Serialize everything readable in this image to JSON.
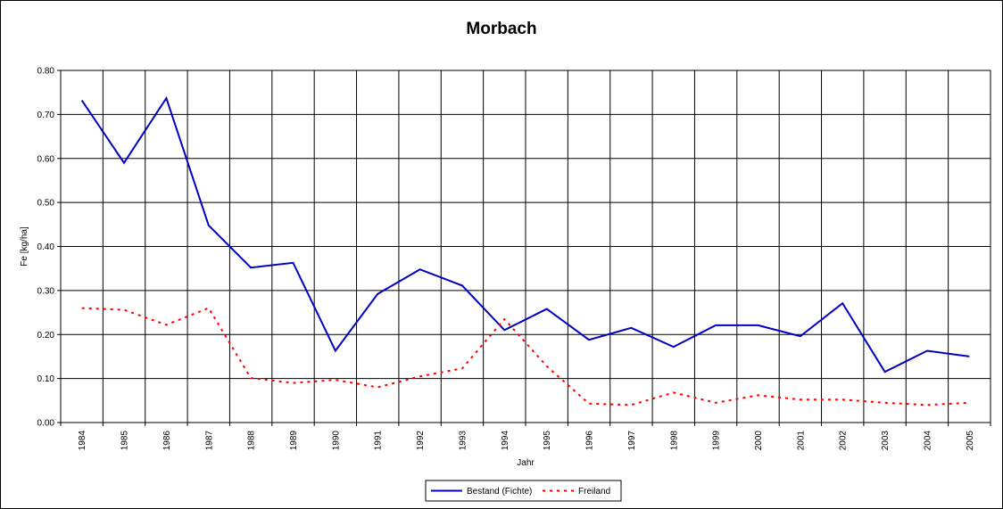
{
  "chart_data": {
    "type": "line",
    "title": "Morbach",
    "xlabel": "Jahr",
    "ylabel": "Fe [kg/ha]",
    "ylim": [
      0,
      0.8
    ],
    "yticks": [
      "0.00",
      "0.10",
      "0.20",
      "0.30",
      "0.40",
      "0.50",
      "0.60",
      "0.70",
      "0.80"
    ],
    "grid": true,
    "legend_position": "bottom-center",
    "categories": [
      "1984",
      "1985",
      "1986",
      "1987",
      "1988",
      "1989",
      "1990",
      "1991",
      "1992",
      "1993",
      "1994",
      "1995",
      "1996",
      "1997",
      "1998",
      "1999",
      "2000",
      "2001",
      "2002",
      "2003",
      "2004",
      "2005"
    ],
    "series": [
      {
        "name": "Bestand (Fichte)",
        "color": "#0000C0",
        "style": "solid",
        "values": [
          0.732,
          0.59,
          0.737,
          0.448,
          0.352,
          0.363,
          0.163,
          0.292,
          0.348,
          0.311,
          0.21,
          0.258,
          0.188,
          0.215,
          0.172,
          0.221,
          0.221,
          0.196,
          0.271,
          0.115,
          0.163,
          0.15
        ]
      },
      {
        "name": "Freiland",
        "color": "#FF0000",
        "style": "dotted",
        "values": [
          0.26,
          0.256,
          0.222,
          0.26,
          0.101,
          0.09,
          0.097,
          0.08,
          0.105,
          0.123,
          0.235,
          0.128,
          0.043,
          0.04,
          0.068,
          0.045,
          0.062,
          0.052,
          0.052,
          0.045,
          0.04,
          0.045
        ]
      }
    ]
  }
}
